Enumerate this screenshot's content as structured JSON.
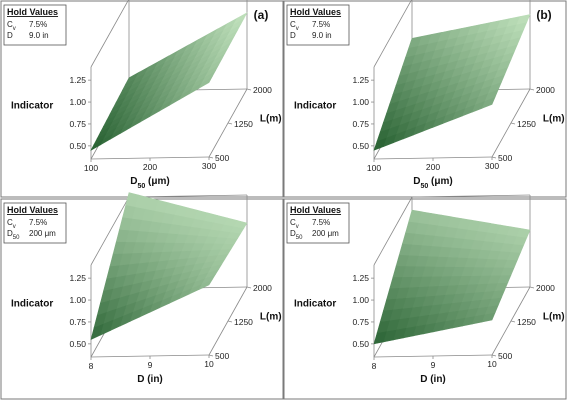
{
  "chart_data": [
    {
      "type": "surface",
      "panel_label": "(a)",
      "hold_values": {
        "title": "Hold Values",
        "lines": [
          {
            "key": "C",
            "sub": "v",
            "value": "7.5%"
          },
          {
            "key": "D",
            "sub": "",
            "value": "9.0 in"
          }
        ]
      },
      "x_axis": {
        "name": "D",
        "sub": "50",
        "unit": "(μm)",
        "ticks": [
          "100",
          "200",
          "300"
        ],
        "range": [
          100,
          300
        ]
      },
      "y_axis": {
        "label": "L(m)",
        "ticks": [
          "500",
          "1250",
          "2000"
        ],
        "range": [
          500,
          2000
        ]
      },
      "z_axis": {
        "label": "Indicator",
        "ticks": [
          "0.50",
          "0.75",
          "1.00",
          "1.25"
        ],
        "range": [
          0.35,
          1.4
        ]
      },
      "corners": {
        "x_min_y_min": 0.45,
        "x_max_y_min": 1.2,
        "x_min_y_max": 0.5,
        "x_max_y_max": 1.22
      },
      "colors": {
        "dark": "#1f5a2a",
        "light": "#d8f5d2"
      }
    },
    {
      "type": "surface",
      "panel_label": "(b)",
      "hold_values": {
        "title": "Hold Values",
        "lines": [
          {
            "key": "C",
            "sub": "v",
            "value": "7.5%"
          },
          {
            "key": "D",
            "sub": "",
            "value": "9.0 in"
          }
        ]
      },
      "x_axis": {
        "name": "D",
        "sub": "50",
        "unit": "(μm)",
        "ticks": [
          "100",
          "200",
          "300"
        ],
        "range": [
          100,
          300
        ]
      },
      "y_axis": {
        "label": "L(m)",
        "ticks": [
          "500",
          "1250",
          "2000"
        ],
        "range": [
          500,
          2000
        ]
      },
      "z_axis": {
        "label": "Indicator",
        "ticks": [
          "0.50",
          "0.75",
          "1.00",
          "1.25"
        ],
        "range": [
          0.35,
          1.4
        ]
      },
      "corners": {
        "x_min_y_min": 0.45,
        "x_max_y_min": 0.95,
        "x_min_y_max": 0.95,
        "x_max_y_max": 1.2
      },
      "colors": {
        "dark": "#1f5a2a",
        "light": "#d8f5d2"
      }
    },
    {
      "type": "surface",
      "panel_label": "",
      "hold_values": {
        "title": "Hold Values",
        "lines": [
          {
            "key": "C",
            "sub": "v",
            "value": "7.5%"
          },
          {
            "key": "D",
            "sub": "50",
            "value": "200 μm"
          }
        ]
      },
      "x_axis": {
        "name": "D (in)",
        "sub": "",
        "unit": "",
        "ticks": [
          "8",
          "9",
          "10"
        ],
        "range": [
          8,
          10
        ]
      },
      "y_axis": {
        "label": "L(m)",
        "ticks": [
          "500",
          "1250",
          "2000"
        ],
        "range": [
          500,
          2000
        ]
      },
      "z_axis": {
        "label": "Indicator",
        "ticks": [
          "0.50",
          "0.75",
          "1.00",
          "1.25"
        ],
        "range": [
          0.35,
          1.4
        ]
      },
      "corners": {
        "x_min_y_min": 0.55,
        "x_max_y_min": 1.15,
        "x_min_y_max": 1.45,
        "x_max_y_max": 1.08
      },
      "colors": {
        "dark": "#1f5a2a",
        "light": "#d8f5d2"
      }
    },
    {
      "type": "surface",
      "panel_label": "",
      "hold_values": {
        "title": "Hold Values",
        "lines": [
          {
            "key": "C",
            "sub": "v",
            "value": "7.5%"
          },
          {
            "key": "D",
            "sub": "50",
            "value": "200 μm"
          }
        ]
      },
      "x_axis": {
        "name": "D (in)",
        "sub": "",
        "unit": "",
        "ticks": [
          "8",
          "9",
          "10"
        ],
        "range": [
          8,
          10
        ]
      },
      "y_axis": {
        "label": "L(m)",
        "ticks": [
          "500",
          "1250",
          "2000"
        ],
        "range": [
          500,
          2000
        ]
      },
      "z_axis": {
        "label": "Indicator",
        "ticks": [
          "0.50",
          "0.75",
          "1.00",
          "1.25"
        ],
        "range": [
          0.35,
          1.4
        ]
      },
      "corners": {
        "x_min_y_min": 0.5,
        "x_max_y_min": 0.75,
        "x_min_y_max": 1.25,
        "x_max_y_max": 1.0
      },
      "colors": {
        "dark": "#1f5a2a",
        "light": "#d8f5d2"
      }
    }
  ]
}
